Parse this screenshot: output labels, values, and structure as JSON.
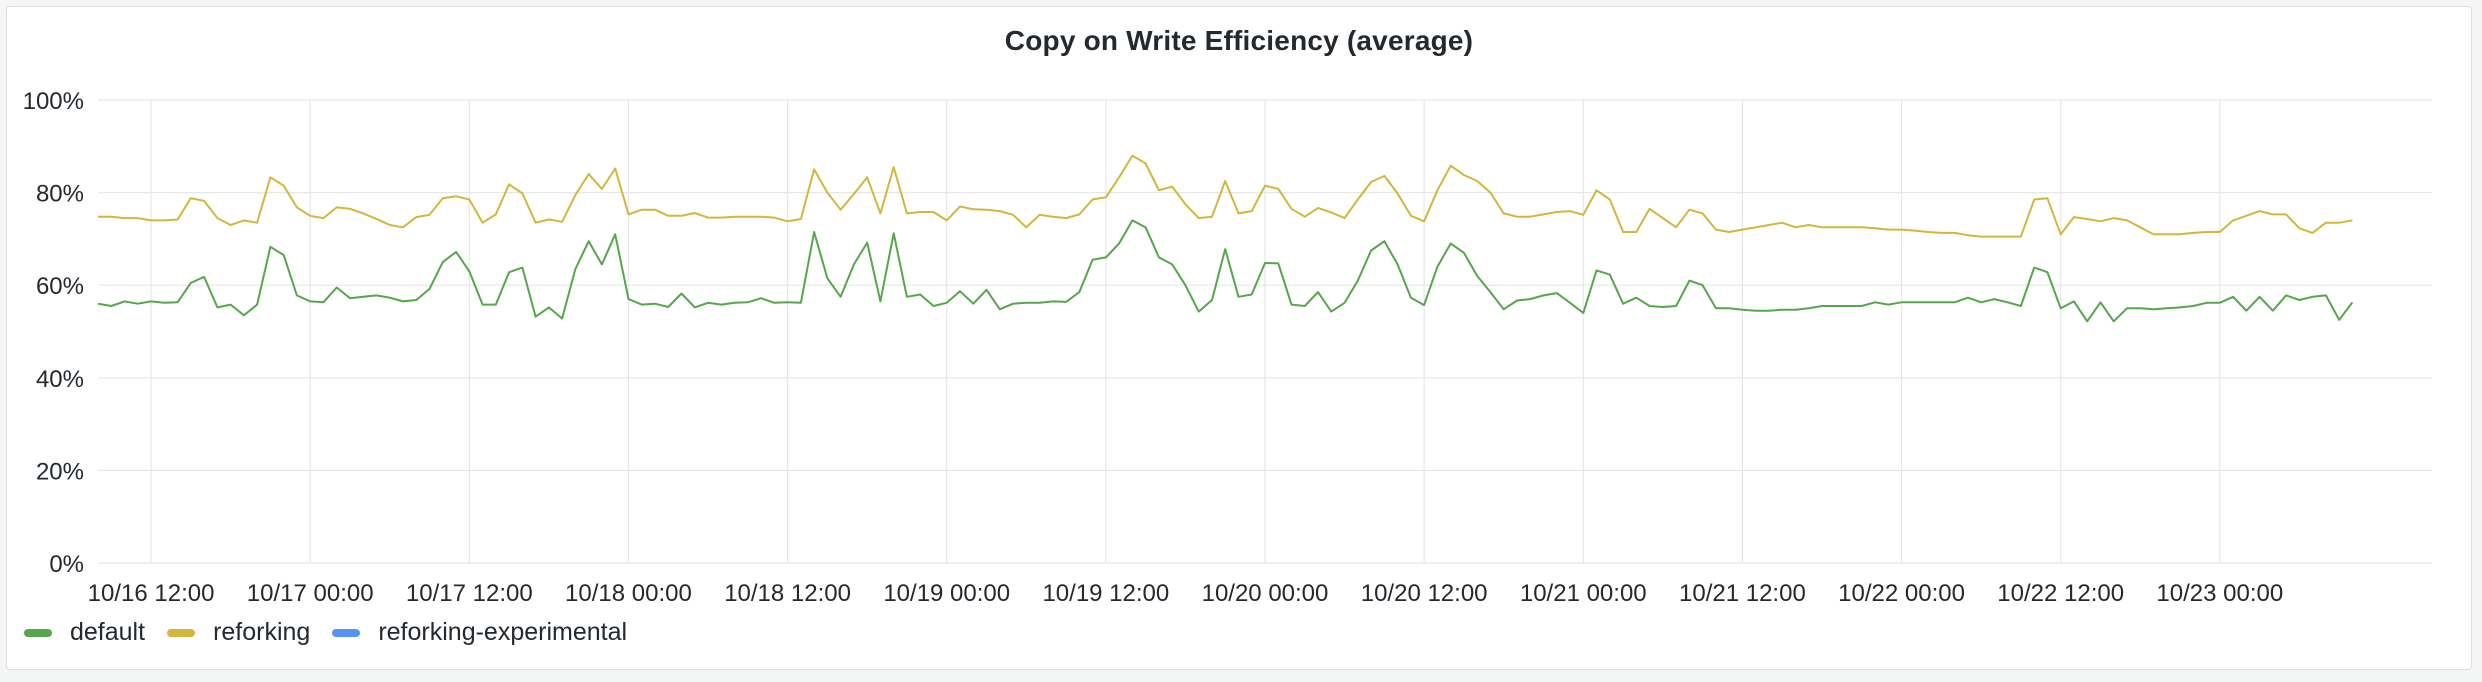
{
  "panel": {
    "title": "Copy on Write Efficiency (average)"
  },
  "chart_data": {
    "type": "line",
    "title": "Copy on Write Efficiency (average)",
    "xlabel": "",
    "ylabel": "",
    "ylim": [
      0,
      100
    ],
    "yticks": [
      "0%",
      "20%",
      "40%",
      "60%",
      "80%",
      "100%"
    ],
    "x_start": "10/16 08:00",
    "x_end": "10/23 16:00",
    "x_step": "1h",
    "xticks": [
      "10/16 12:00",
      "10/17 00:00",
      "10/17 12:00",
      "10/18 00:00",
      "10/18 12:00",
      "10/19 00:00",
      "10/19 12:00",
      "10/20 00:00",
      "10/20 12:00",
      "10/21 00:00",
      "10/21 12:00",
      "10/22 00:00",
      "10/22 12:00",
      "10/23 00:00"
    ],
    "grid": true,
    "legend_position": "bottom-left",
    "series": [
      {
        "name": "default",
        "color": "#56a64b",
        "values": [
          56,
          55.5,
          56.5,
          56,
          56.5,
          56.2,
          56.3,
          60.5,
          61.8,
          55.2,
          55.8,
          53.5,
          55.8,
          68.3,
          66.5,
          57.8,
          56.5,
          56.3,
          59.5,
          57.2,
          57.5,
          57.8,
          57.3,
          56.5,
          56.8,
          59.2,
          65,
          67.2,
          63,
          55.8,
          55.8,
          62.8,
          63.8,
          53.2,
          55.2,
          52.8,
          63.5,
          69.5,
          64.5,
          71,
          57,
          55.8,
          56,
          55.3,
          58.2,
          55.2,
          56.2,
          55.8,
          56.2,
          56.3,
          57.2,
          56.2,
          56.3,
          56.2,
          71.5,
          61.5,
          57.5,
          64.5,
          69.2,
          56.5,
          71.2,
          57.5,
          58,
          55.5,
          56.2,
          58.7,
          56,
          59,
          54.8,
          56,
          56.2,
          56.2,
          56.5,
          56.4,
          58.5,
          65.5,
          66,
          69,
          74,
          72.5,
          66,
          64.5,
          60,
          54.3,
          56.8,
          67.8,
          57.5,
          58,
          64.8,
          64.7,
          55.8,
          55.5,
          58.5,
          54.3,
          56.2,
          61,
          67.5,
          69.5,
          64.5,
          57.3,
          55.7,
          64,
          69,
          67,
          62,
          58.5,
          54.8,
          56.7,
          57,
          57.8,
          58.3,
          56.2,
          54,
          63.2,
          62.3,
          56,
          57.3,
          55.5,
          55.3,
          55.5,
          61,
          60,
          55,
          55,
          54.7,
          54.5,
          54.5,
          54.7,
          54.7,
          55,
          55.5,
          55.5,
          55.5,
          55.5,
          56.3,
          55.8,
          56.3,
          56.3,
          56.3,
          56.3,
          56.3,
          57.3,
          56.3,
          57,
          56.3,
          55.5,
          63.8,
          62.8,
          55,
          56.5,
          52.2,
          56.3,
          52.2,
          55,
          55,
          54.8,
          55,
          55.2,
          55.5,
          56.2,
          56.2,
          57.5,
          54.5,
          57.5,
          54.5,
          57.8,
          56.8,
          57.5,
          57.8,
          52.5,
          56.3
        ]
      },
      {
        "name": "reforking",
        "color": "#d4b63c",
        "values": [
          74.8,
          74.8,
          74.5,
          74.5,
          74,
          74,
          74.2,
          78.8,
          78.2,
          74.5,
          73,
          74,
          73.5,
          83.3,
          81.5,
          76.8,
          75,
          74.5,
          76.8,
          76.5,
          75.5,
          74.3,
          73,
          72.5,
          74.7,
          75.2,
          78.8,
          79.2,
          78.5,
          73.5,
          75.3,
          81.8,
          79.8,
          73.5,
          74.2,
          73.7,
          79.5,
          84,
          80.8,
          85.2,
          75.3,
          76.3,
          76.3,
          75,
          75,
          75.6,
          74.6,
          74.6,
          74.8,
          74.8,
          74.8,
          74.6,
          73.8,
          74.3,
          85,
          80,
          76.3,
          79.7,
          83.3,
          75.5,
          85.5,
          75.5,
          75.8,
          75.8,
          74,
          77,
          76.4,
          76.3,
          76,
          75.2,
          72.5,
          75.2,
          74.8,
          74.5,
          75.3,
          78.5,
          79,
          83.3,
          88,
          86.3,
          80.5,
          81.3,
          77.5,
          74.5,
          74.8,
          82.5,
          75.5,
          76,
          81.5,
          80.8,
          76.5,
          74.8,
          76.7,
          75.7,
          74.5,
          78.5,
          82.3,
          83.6,
          79.8,
          75,
          73.8,
          80.5,
          85.8,
          83.8,
          82.5,
          80,
          75.5,
          74.8,
          74.8,
          75.3,
          75.8,
          76,
          75.2,
          80.5,
          78.5,
          71.5,
          71.5,
          76.5,
          74.5,
          72.5,
          76.3,
          75.5,
          72,
          71.5,
          72,
          72.5,
          73,
          73.5,
          72.5,
          73,
          72.5,
          72.5,
          72.5,
          72.5,
          72.3,
          72,
          72,
          71.8,
          71.5,
          71.3,
          71.3,
          70.8,
          70.5,
          70.5,
          70.5,
          70.5,
          78.5,
          78.8,
          71,
          74.7,
          74.3,
          73.8,
          74.5,
          74,
          72.5,
          71,
          71,
          71,
          71.3,
          71.5,
          71.5,
          74,
          75,
          76,
          75.3,
          75.3,
          72.3,
          71.3,
          73.5,
          73.5,
          74
        ]
      },
      {
        "name": "reforking-experimental",
        "color": "#5794f2",
        "values": []
      }
    ]
  }
}
